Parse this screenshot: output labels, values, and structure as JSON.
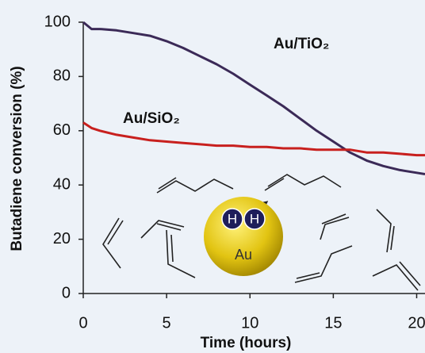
{
  "chart_data": {
    "type": "line",
    "x_label": "Time (hours)",
    "y_label": "Butadiene conversion (%)",
    "x": [
      0,
      0.5,
      1,
      2,
      3,
      4,
      5,
      6,
      7,
      8,
      9,
      10,
      11,
      12,
      13,
      14,
      15,
      16,
      17,
      18,
      19,
      20,
      20.5
    ],
    "series": [
      {
        "name": "Au/TiO₂",
        "color": "#3b2a57",
        "values": [
          100,
          97.5,
          97.5,
          97,
          96,
          95,
          93,
          90.5,
          87.5,
          84.5,
          81,
          77,
          73,
          69,
          64.5,
          60,
          56,
          52,
          49,
          47,
          45.5,
          44.5,
          44
        ]
      },
      {
        "name": "Au/SiO₂",
        "color": "#c8201e",
        "values": [
          63,
          61,
          60,
          58.5,
          57.5,
          56.5,
          56,
          55.5,
          55,
          54.5,
          54.5,
          54,
          54,
          53.5,
          53.5,
          53,
          53,
          53,
          52,
          52,
          51.5,
          51,
          51
        ]
      }
    ],
    "xlim": [
      0,
      20.5
    ],
    "xticks": [
      0,
      5,
      10,
      15,
      20
    ],
    "ylim": [
      0,
      100
    ],
    "yticks": [
      0,
      20,
      40,
      60,
      80,
      100
    ]
  },
  "illustration": {
    "sphere_label": "Au",
    "atoms": [
      "H",
      "H"
    ]
  }
}
